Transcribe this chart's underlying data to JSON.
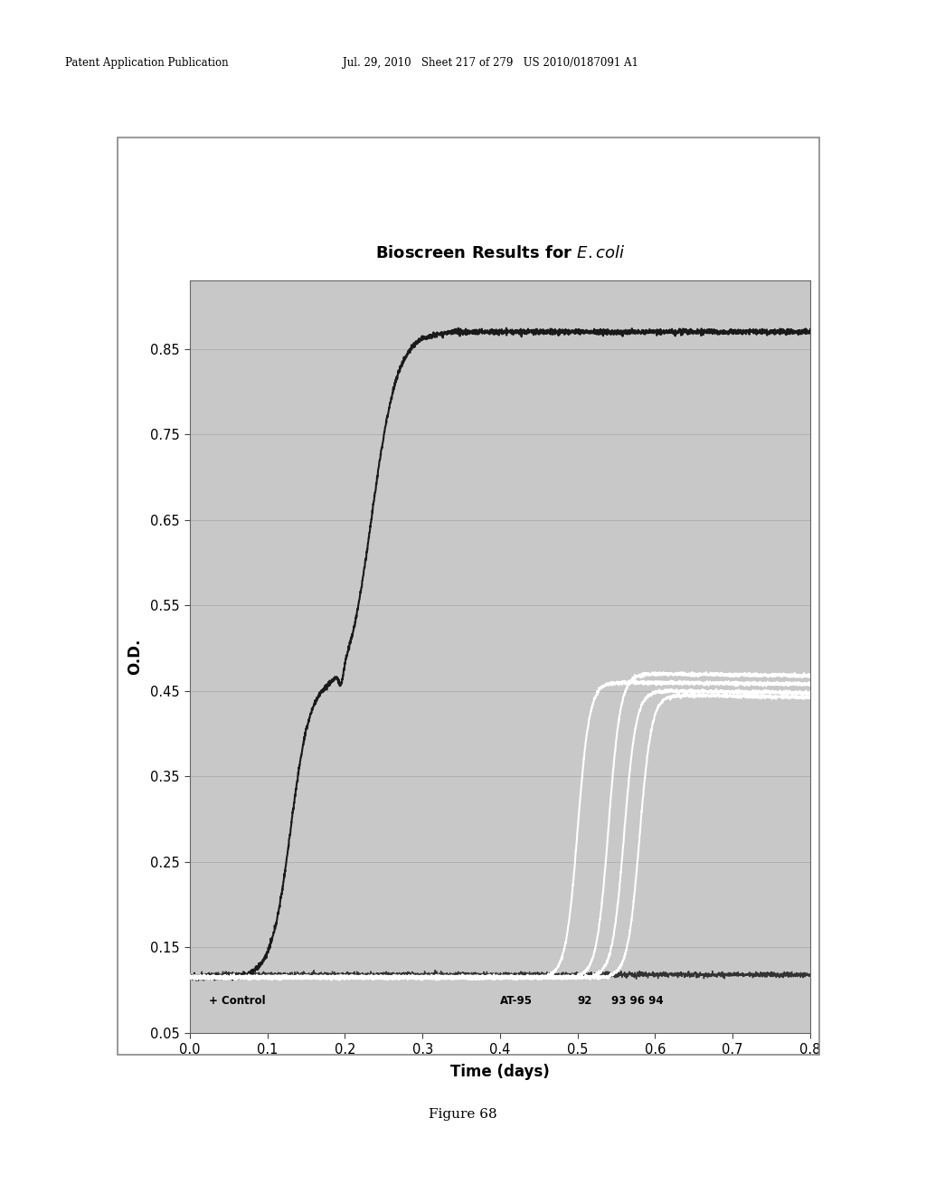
{
  "title": "Bioscreen Results for $\\mathbf{\\mathit{E. coli}}$",
  "xlabel": "Time (days)",
  "ylabel": "O.D.",
  "xlim": [
    0,
    0.8
  ],
  "ylim": [
    0.05,
    0.93
  ],
  "yticks": [
    0.05,
    0.15,
    0.25,
    0.35,
    0.45,
    0.55,
    0.65,
    0.75,
    0.85
  ],
  "xticks": [
    0,
    0.1,
    0.2,
    0.3,
    0.4,
    0.5,
    0.6,
    0.7,
    0.8
  ],
  "plot_bg_color": "#c8c8c8",
  "fig_bg_color": "#ffffff",
  "grid_color": "#aaaaaa",
  "curve_dark_color": "#1a1a1a",
  "curve_flat_color": "#333333",
  "curve_white_color": "#ffffff",
  "header_text1": "Patent Application Publication",
  "header_text2": "Jul. 29, 2010   Sheet 217 of 279   US 2010/0187091 A1",
  "figure_caption": "Figure 68",
  "label_control": "+ Control",
  "label_at95": "AT-95",
  "label_92": "92",
  "label_939694": "93 96 94"
}
